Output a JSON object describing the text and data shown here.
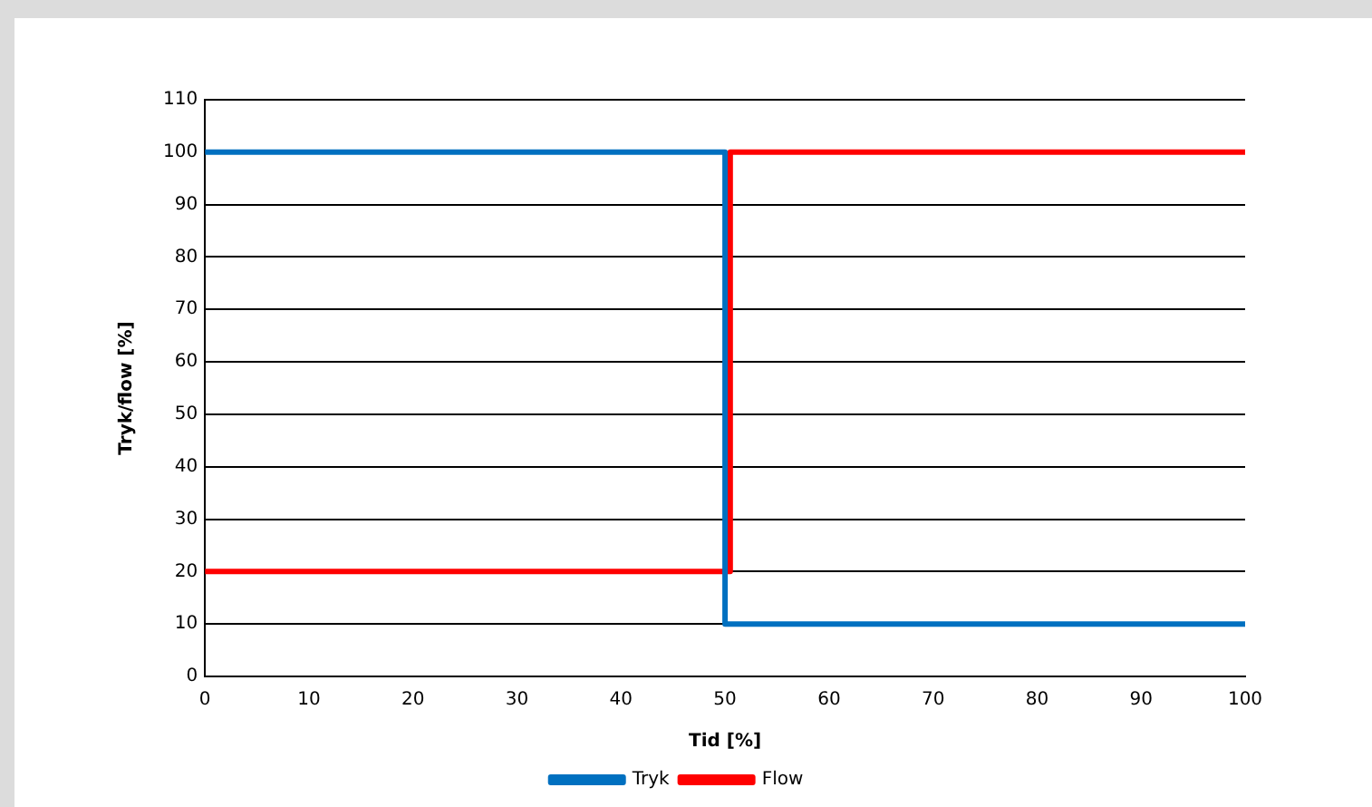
{
  "chart_data": {
    "type": "line",
    "xlabel": "Tid [%]",
    "ylabel": "Tryk/flow [%]",
    "series": [
      {
        "name": "Tryk",
        "color": "#0070c0",
        "x": [
          0,
          50,
          50,
          100
        ],
        "values": [
          100,
          100,
          10,
          10
        ]
      },
      {
        "name": "Flow",
        "color": "#ff0000",
        "x": [
          0,
          50.5,
          50.5,
          100
        ],
        "values": [
          20,
          20,
          100,
          100
        ]
      }
    ],
    "xlim": [
      0,
      100
    ],
    "xticks": [
      0,
      10,
      20,
      30,
      40,
      50,
      60,
      70,
      80,
      90,
      100
    ],
    "ylim": [
      0,
      110
    ],
    "yticks": [
      0,
      10,
      20,
      30,
      40,
      50,
      60,
      70,
      80,
      90,
      100,
      110
    ],
    "grid": "y",
    "legend": "bottom",
    "marker": "none",
    "line_style": "solid"
  }
}
